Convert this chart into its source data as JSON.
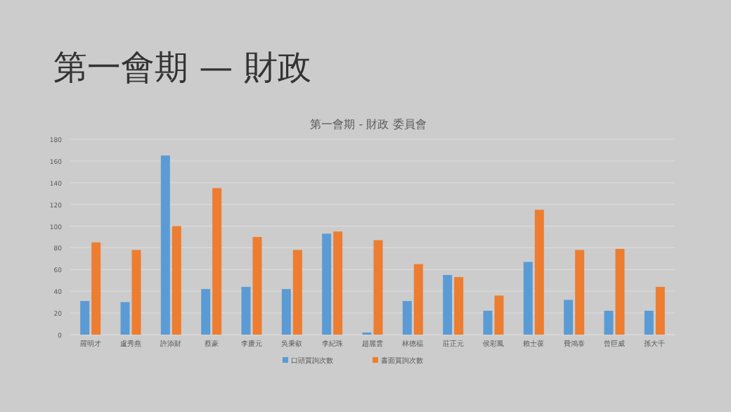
{
  "chart_data": {
    "type": "bar",
    "title": "第一會期 — 財政",
    "subtitle": "第一會期 - 財政 委員會",
    "categories": [
      "羅明才",
      "盧秀燕",
      "許添財",
      "蔡豪",
      "李慶元",
      "吳秉叡",
      "李紀珠",
      "趙麗雲",
      "林德福",
      "莊正元",
      "侯彩鳳",
      "賴士葆",
      "費鴻泰",
      "曾巨威",
      "孫大千"
    ],
    "series": [
      {
        "name": "口頭質詢次數",
        "color": "#5b9bd5",
        "values": [
          31,
          30,
          165,
          42,
          44,
          42,
          93,
          2,
          31,
          55,
          22,
          67,
          32,
          22,
          22
        ]
      },
      {
        "name": "書面質詢次數",
        "color": "#ed7d31",
        "values": [
          85,
          78,
          100,
          135,
          90,
          78,
          95,
          87,
          65,
          53,
          36,
          115,
          78,
          79,
          44
        ]
      }
    ],
    "ylim": [
      0,
      180
    ],
    "yticks": [
      0,
      20,
      40,
      60,
      80,
      100,
      120,
      140,
      160,
      180
    ],
    "grid": "y",
    "legend": "bottom"
  }
}
